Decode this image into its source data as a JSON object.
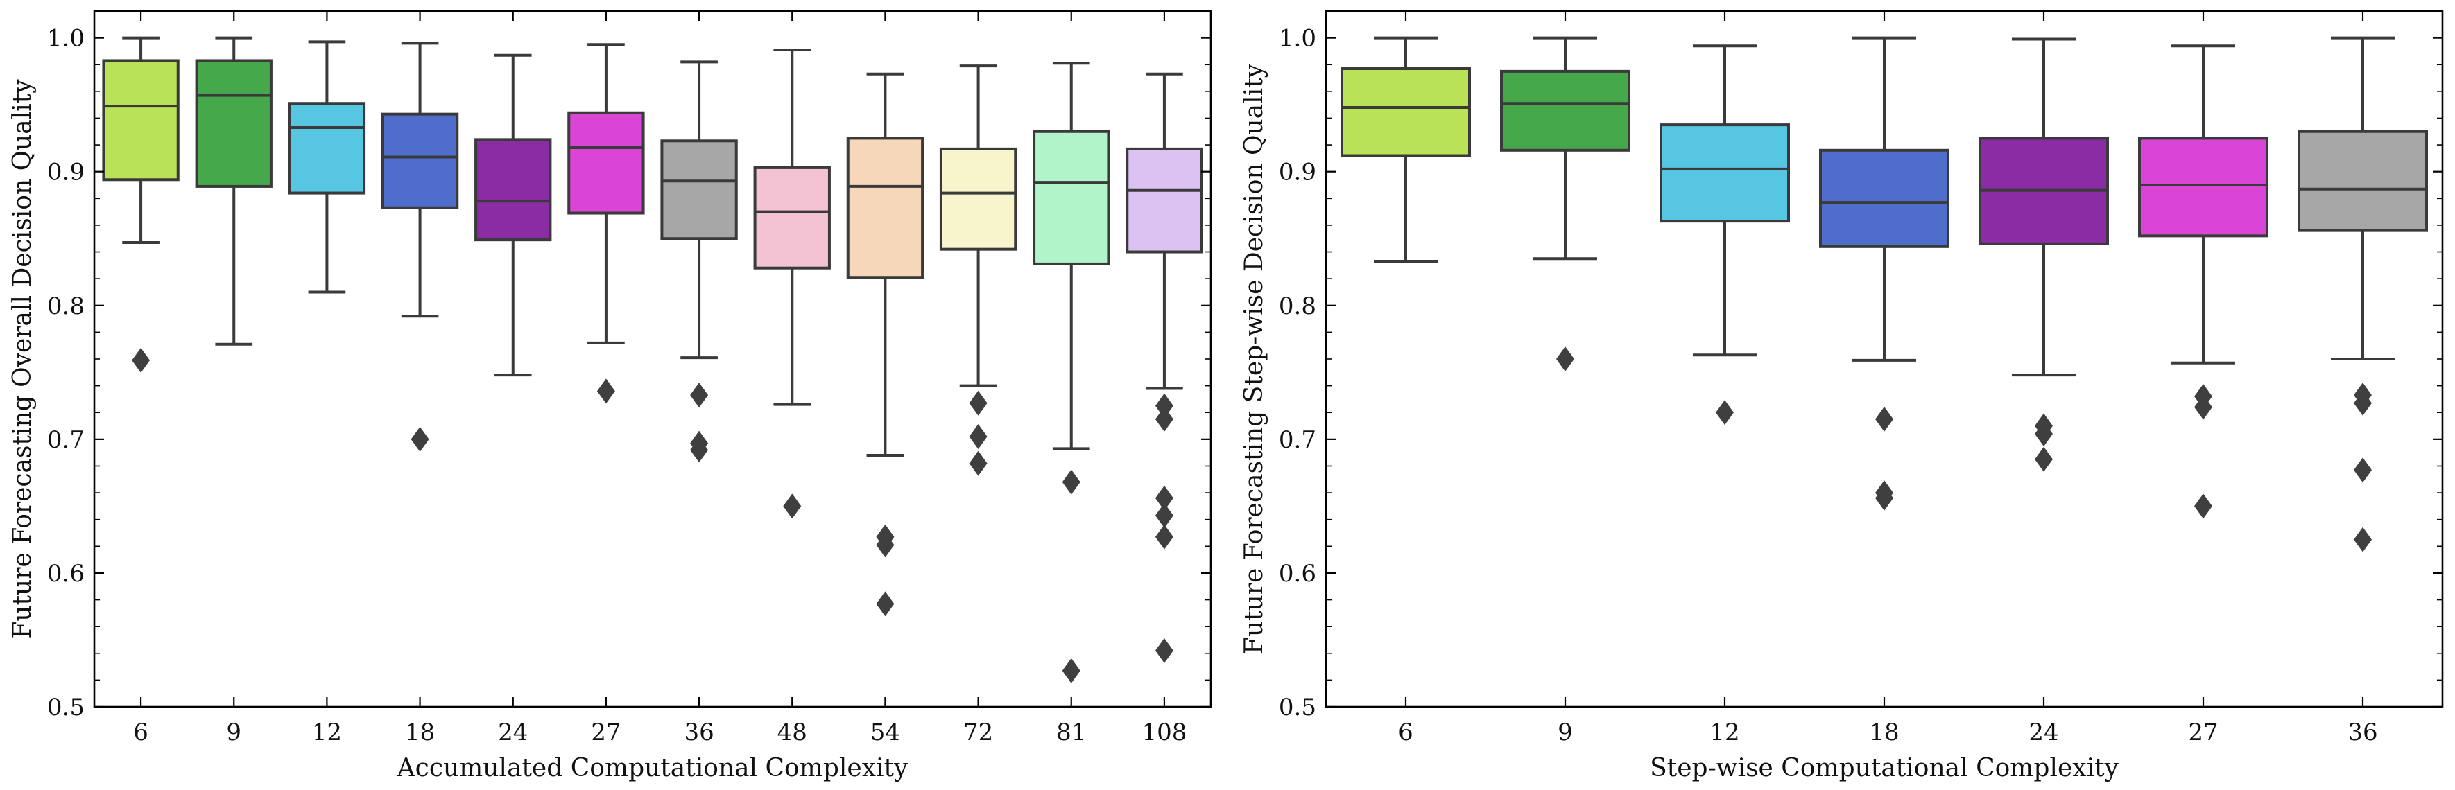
{
  "chart_data": [
    {
      "type": "box",
      "xlabel": "Accumulated Computational Complexity",
      "ylabel": "Future Forecasting Overall Decision Quality",
      "ylim": [
        0.5,
        1.02
      ],
      "yticks": [
        "0.5",
        "0.6",
        "0.7",
        "0.8",
        "0.9",
        "1.0"
      ],
      "ytick_values": [
        0.5,
        0.6,
        0.7,
        0.8,
        0.9,
        1.0
      ],
      "categories": [
        "6",
        "9",
        "12",
        "18",
        "24",
        "27",
        "36",
        "48",
        "54",
        "72",
        "81",
        "108"
      ],
      "boxes": [
        {
          "min": 0.847,
          "q1": 0.894,
          "median": 0.949,
          "q3": 0.983,
          "max": 1.0,
          "outliers": [
            0.759
          ],
          "color": "#b9e257"
        },
        {
          "min": 0.771,
          "q1": 0.889,
          "median": 0.957,
          "q3": 0.983,
          "max": 1.0,
          "outliers": [],
          "color": "#45a84b"
        },
        {
          "min": 0.81,
          "q1": 0.884,
          "median": 0.933,
          "q3": 0.951,
          "max": 0.997,
          "outliers": [],
          "color": "#57c6e3"
        },
        {
          "min": 0.792,
          "q1": 0.873,
          "median": 0.911,
          "q3": 0.943,
          "max": 0.996,
          "outliers": [
            0.7
          ],
          "color": "#4f6ecb"
        },
        {
          "min": 0.748,
          "q1": 0.849,
          "median": 0.878,
          "q3": 0.924,
          "max": 0.987,
          "outliers": [],
          "color": "#8a2ca3"
        },
        {
          "min": 0.772,
          "q1": 0.869,
          "median": 0.918,
          "q3": 0.944,
          "max": 0.995,
          "outliers": [
            0.736
          ],
          "color": "#d946d6"
        },
        {
          "min": 0.761,
          "q1": 0.85,
          "median": 0.893,
          "q3": 0.923,
          "max": 0.982,
          "outliers": [
            0.733,
            0.697,
            0.692
          ],
          "color": "#a7a7a7"
        },
        {
          "min": 0.726,
          "q1": 0.828,
          "median": 0.87,
          "q3": 0.903,
          "max": 0.991,
          "outliers": [
            0.65
          ],
          "color": "#f3c3d3"
        },
        {
          "min": 0.688,
          "q1": 0.821,
          "median": 0.889,
          "q3": 0.925,
          "max": 0.973,
          "outliers": [
            0.627,
            0.621,
            0.577
          ],
          "color": "#f7d7b9"
        },
        {
          "min": 0.74,
          "q1": 0.842,
          "median": 0.884,
          "q3": 0.917,
          "max": 0.979,
          "outliers": [
            0.727,
            0.702,
            0.682
          ],
          "color": "#f8f4cc"
        },
        {
          "min": 0.693,
          "q1": 0.831,
          "median": 0.892,
          "q3": 0.93,
          "max": 0.981,
          "outliers": [
            0.668,
            0.527
          ],
          "color": "#b2f4c9"
        },
        {
          "min": 0.738,
          "q1": 0.84,
          "median": 0.886,
          "q3": 0.917,
          "max": 0.973,
          "outliers": [
            0.725,
            0.715,
            0.656,
            0.643,
            0.627,
            0.542
          ],
          "color": "#dcc2f3"
        }
      ]
    },
    {
      "type": "box",
      "xlabel": "Step-wise Computational Complexity",
      "ylabel": "Future Forecasting Step-wise Decision Quality",
      "ylim": [
        0.5,
        1.02
      ],
      "yticks": [
        "0.5",
        "0.6",
        "0.7",
        "0.8",
        "0.9",
        "1.0"
      ],
      "ytick_values": [
        0.5,
        0.6,
        0.7,
        0.8,
        0.9,
        1.0
      ],
      "categories": [
        "6",
        "9",
        "12",
        "18",
        "24",
        "27",
        "36"
      ],
      "boxes": [
        {
          "min": 0.833,
          "q1": 0.912,
          "median": 0.948,
          "q3": 0.977,
          "max": 1.0,
          "outliers": [],
          "color": "#b9e257"
        },
        {
          "min": 0.835,
          "q1": 0.916,
          "median": 0.951,
          "q3": 0.975,
          "max": 1.0,
          "outliers": [
            0.76
          ],
          "color": "#45a84b"
        },
        {
          "min": 0.763,
          "q1": 0.863,
          "median": 0.902,
          "q3": 0.935,
          "max": 0.994,
          "outliers": [
            0.72
          ],
          "color": "#57c6e3"
        },
        {
          "min": 0.759,
          "q1": 0.844,
          "median": 0.877,
          "q3": 0.916,
          "max": 1.0,
          "outliers": [
            0.715,
            0.66,
            0.656
          ],
          "color": "#4f6ecb"
        },
        {
          "min": 0.748,
          "q1": 0.846,
          "median": 0.886,
          "q3": 0.925,
          "max": 0.999,
          "outliers": [
            0.71,
            0.704,
            0.685
          ],
          "color": "#8a2ca3"
        },
        {
          "min": 0.757,
          "q1": 0.852,
          "median": 0.89,
          "q3": 0.925,
          "max": 0.994,
          "outliers": [
            0.732,
            0.724,
            0.65
          ],
          "color": "#d946d6"
        },
        {
          "min": 0.76,
          "q1": 0.856,
          "median": 0.887,
          "q3": 0.93,
          "max": 1.0,
          "outliers": [
            0.733,
            0.727,
            0.677,
            0.625
          ],
          "color": "#a7a7a7"
        }
      ]
    }
  ]
}
